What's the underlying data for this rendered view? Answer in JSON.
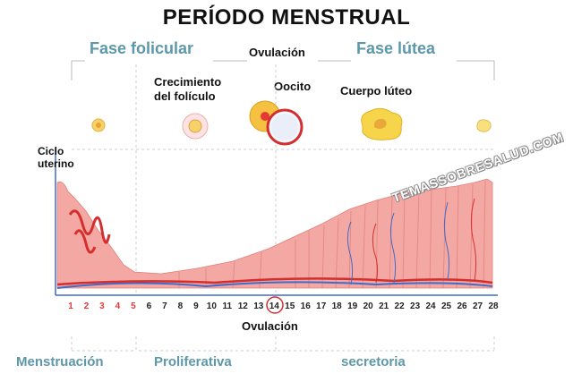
{
  "title": "PERÍODO MENSTRUAL",
  "phases_top": {
    "follicular": "Fase folicular",
    "ovulation": "Ovulación",
    "luteal": "Fase lútea"
  },
  "stage_labels": {
    "follicle_growth": "Crecimiento\ndel folículo",
    "oocyte": "Oocito",
    "corpus_luteum": "Cuerpo lúteo"
  },
  "cycle_axis_label": "Ciclo\nuterino",
  "watermark": "TEMASSOBRESALUD.COM",
  "days": [
    "1",
    "2",
    "3",
    "4",
    "5",
    "6",
    "7",
    "8",
    "9",
    "10",
    "11",
    "12",
    "13",
    "14",
    "15",
    "16",
    "17",
    "18",
    "19",
    "20",
    "21",
    "22",
    "23",
    "24",
    "25",
    "26",
    "27",
    "28"
  ],
  "menstrual_days": [
    "1",
    "2",
    "3",
    "4",
    "5"
  ],
  "ovulation_day": "14",
  "ovulation_bottom": "Ovulación",
  "phases_bottom": {
    "menstruation": "Menstruación",
    "proliferative": "Proliferativa",
    "secretory": "secretoria"
  },
  "colors": {
    "phase_text": "#5d98a9",
    "tissue": "#f4a8a3",
    "artery": "#d32f2f",
    "vein": "#3f6bc9",
    "menstrual_day": "#e53935"
  }
}
